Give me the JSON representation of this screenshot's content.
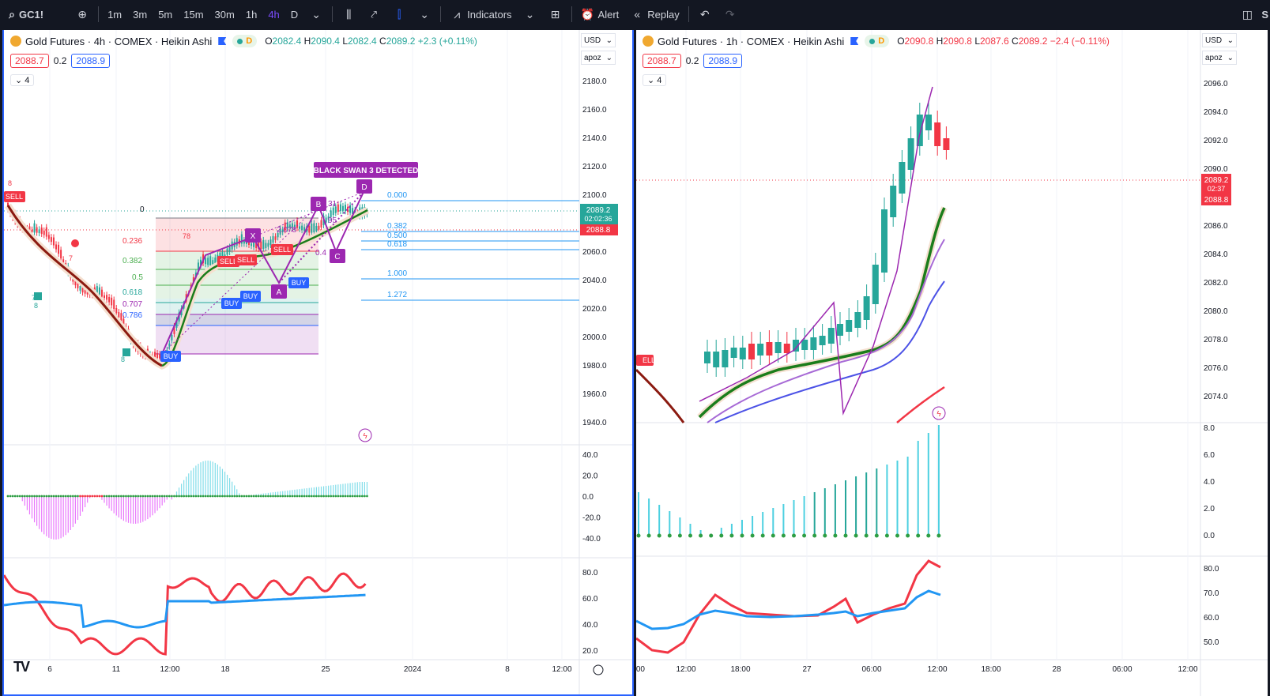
{
  "toolbar": {
    "symbol": "GC1!",
    "timeframes": [
      "1m",
      "3m",
      "5m",
      "15m",
      "30m",
      "1h",
      "4h",
      "D"
    ],
    "active_timeframe": "4h",
    "indicators_label": "Indicators",
    "alert_label": "Alert",
    "replay_label": "Replay",
    "right_cut": "S"
  },
  "left": {
    "title": "Gold Futures · 4h · COMEX · Heikin Ashi",
    "status_d": "D",
    "ohlc": {
      "o": "2082.4",
      "h": "2090.4",
      "l": "2082.4",
      "c": "2089.2",
      "chg": "+2.3 (+0.11%)"
    },
    "sell_price": "2088.7",
    "spread": "0.2",
    "buy_price": "2088.9",
    "collapse_count": "4",
    "currency": "USD",
    "scale_mode": "apoz",
    "price_axis": [
      "2180.0",
      "2160.0",
      "2140.0",
      "2120.0",
      "2100.0",
      "2080.0",
      "2060.0",
      "2040.0",
      "2020.0",
      "2000.0",
      "1980.0",
      "1960.0",
      "1940.0"
    ],
    "last_price": "2089.2",
    "countdown": "02:02:36",
    "bid_price": "2088.8",
    "osc_axis": [
      "40.0",
      "20.0",
      "0.0",
      "-20.0",
      "-40.0"
    ],
    "rsi_axis": [
      "80.0",
      "60.0",
      "40.0",
      "20.0"
    ],
    "time_axis": [
      "6",
      "11",
      "12:00",
      "18",
      "25",
      "2024",
      "8",
      "12:00"
    ],
    "fib_levels": [
      "0",
      "0.236",
      "0.382",
      "0.5",
      "0.618",
      "0.707",
      "0.786"
    ],
    "fib_ext": [
      "0.000",
      "0.382",
      "0.500",
      "0.618",
      "1.000",
      "1.272"
    ],
    "pattern_label": "BLACK SWAN 3 DETECTED",
    "points": [
      "X",
      "A",
      "B",
      "C",
      "D"
    ],
    "ratio": "2.078",
    "ratio2": "0.4",
    "ratio3": "31",
    "ratio4": "95",
    "buy_label": "BUY",
    "sell_label": "SELL",
    "count_labels": [
      "8",
      "7",
      "78",
      "7",
      "8",
      "8"
    ]
  },
  "right": {
    "title": "Gold Futures · 1h · COMEX · Heikin Ashi",
    "status_d": "D",
    "ohlc": {
      "o": "2090.8",
      "h": "2090.8",
      "l": "2087.6",
      "c": "2089.2",
      "chg": "−2.4 (−0.11%)"
    },
    "sell_price": "2088.7",
    "spread": "0.2",
    "buy_price": "2088.9",
    "collapse_count": "4",
    "currency": "USD",
    "scale_mode": "apoz",
    "price_axis": [
      "2096.0",
      "2094.0",
      "2092.0",
      "2090.0",
      "2088.0",
      "2086.0",
      "2084.0",
      "2082.0",
      "2080.0",
      "2078.0",
      "2076.0",
      "2074.0"
    ],
    "last_price": "2089.2",
    "countdown": "02:37",
    "bid_price": "2088.8",
    "osc_axis": [
      "8.0",
      "6.0",
      "4.0",
      "2.0",
      "0.0"
    ],
    "rsi_axis": [
      "80.0",
      "70.0",
      "60.0",
      "50.0"
    ],
    "time_axis": [
      ":00",
      "12:00",
      "18:00",
      "27",
      "06:00",
      "12:00",
      "18:00",
      "28",
      "06:00",
      "12:00"
    ],
    "sell_cut": "ELL"
  },
  "colors": {
    "up": "#26a69a",
    "down": "#f23645",
    "accent": "#2962ff",
    "purple": "#9c27b0",
    "toolbar": "#131722"
  },
  "icons": [
    "search-icon",
    "plus-circle-icon",
    "chevron-down-icon",
    "candles-icon",
    "compare-icon",
    "chart-type-icon",
    "indicators-icon",
    "layout-icon",
    "alert-icon",
    "replay-icon",
    "undo-icon",
    "redo-icon",
    "panel-icon",
    "settings-icon",
    "flash-icon"
  ]
}
